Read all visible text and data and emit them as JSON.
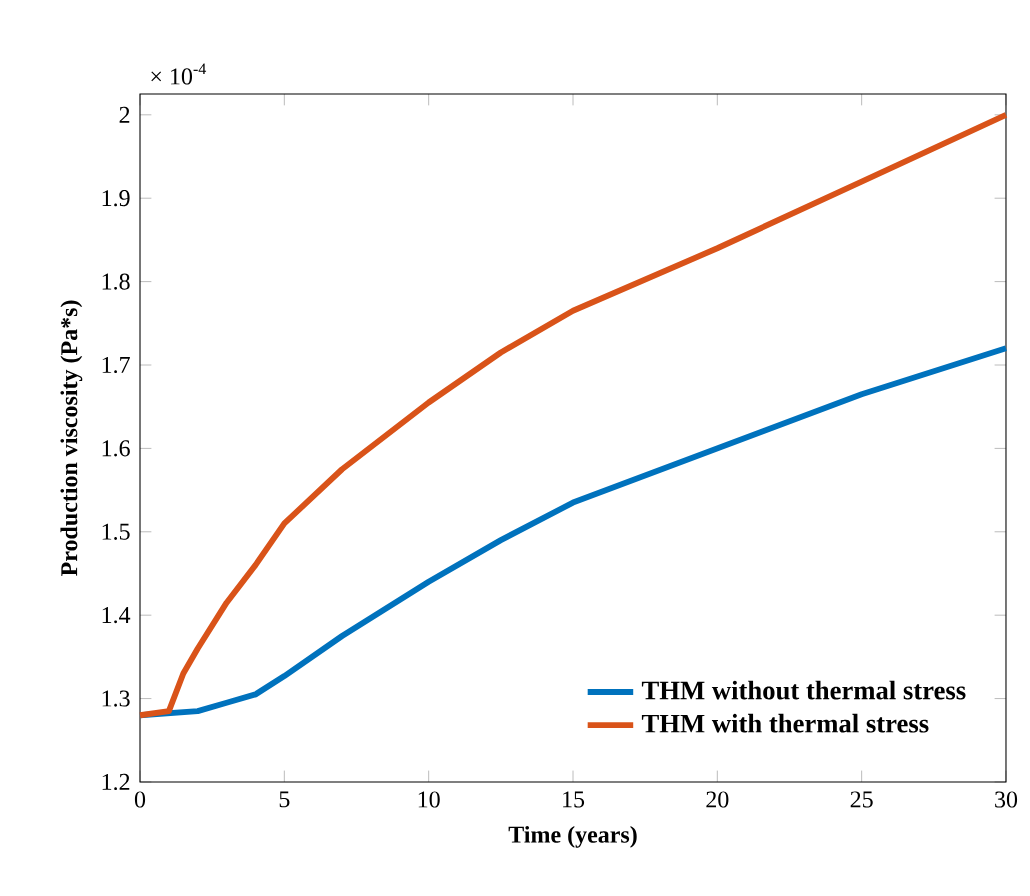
{
  "chart_data": {
    "type": "line",
    "xlabel": "Time (years)",
    "ylabel": "Production viscosity (Pa*s)",
    "annotations": [
      "× 10$^{-4}$"
    ],
    "xlim": [
      0,
      30
    ],
    "xticks": [
      0,
      5,
      10,
      15,
      20,
      25,
      30
    ],
    "ylim": [
      1.2,
      2.025
    ],
    "yticks": [
      1.2,
      1.3,
      1.4,
      1.5,
      1.6,
      1.7,
      1.8,
      1.9,
      2
    ],
    "grid": false,
    "legend": "bottom right",
    "line_style": "solid",
    "marker": "none",
    "series": [
      {
        "name": "THM without thermal stress",
        "color": "#0072bd",
        "x": [
          0,
          2,
          3,
          4,
          5,
          7,
          10,
          12.5,
          15,
          20,
          25,
          30
        ],
        "values": [
          1.28,
          1.285,
          1.295,
          1.305,
          1.327,
          1.375,
          1.44,
          1.49,
          1.535,
          1.6,
          1.665,
          1.72
        ]
      },
      {
        "name": "THM with thermal stress",
        "color": "#d95319",
        "x": [
          0,
          1,
          1.5,
          2,
          3,
          4,
          5,
          7,
          10,
          12.5,
          15,
          20,
          25,
          30
        ],
        "values": [
          1.28,
          1.285,
          1.33,
          1.36,
          1.415,
          1.46,
          1.51,
          1.575,
          1.655,
          1.715,
          1.765,
          1.84,
          1.92,
          2.0
        ]
      }
    ]
  }
}
